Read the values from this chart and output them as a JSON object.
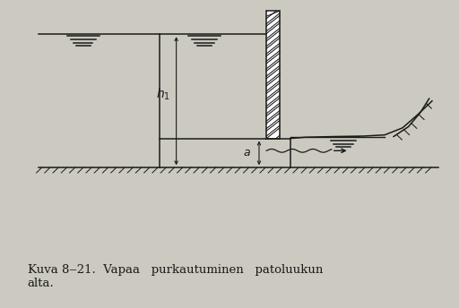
{
  "bg_color": "#cccac0",
  "line_color": "#1a1a1a",
  "caption": "Kuva 8‒21.  Vapaa   purkautuminen   patoluukun\nalta.",
  "caption_fontsize": 9.5
}
